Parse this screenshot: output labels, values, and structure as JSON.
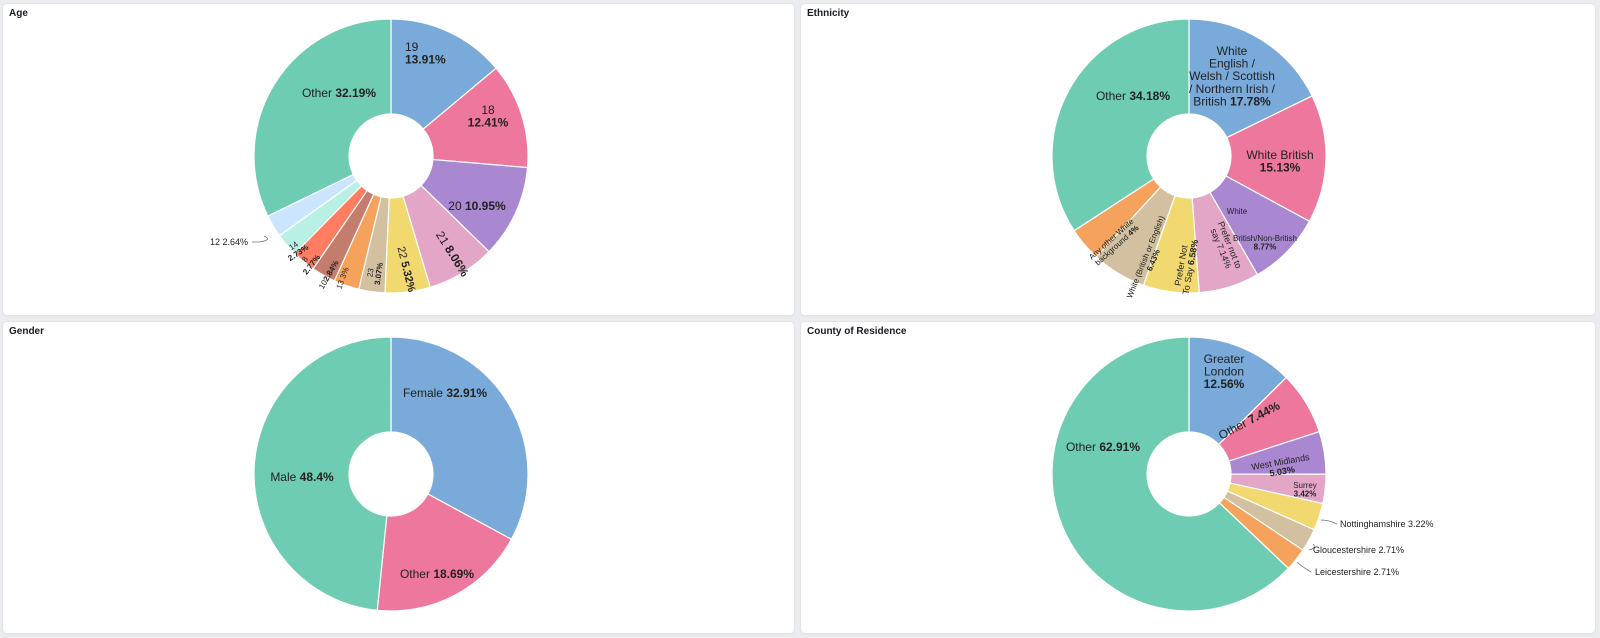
{
  "panels": [
    {
      "title": "Age"
    },
    {
      "title": "Ethnicity"
    },
    {
      "title": "Gender"
    },
    {
      "title": "County of Residence"
    }
  ],
  "colors": {
    "blue": "#79aad9",
    "pink": "#ee789d",
    "purple": "#a987d1",
    "lightpink": "#e4a6c7",
    "yellow": "#f1d86f",
    "tan": "#d2c0a0",
    "orange": "#f5a35c",
    "brown": "#c47c6c",
    "salmon": "#ff7e62",
    "mint": "#b8f1e3",
    "lightblue": "#cce5ff",
    "green": "#6dccb1"
  },
  "chart_data": [
    {
      "type": "pie",
      "title": "Age",
      "donut": true,
      "slices": [
        {
          "label": "19",
          "value": 13.91,
          "color": "#79aad9"
        },
        {
          "label": "18",
          "value": 12.41,
          "color": "#ee789d"
        },
        {
          "label": "20",
          "value": 10.95,
          "color": "#a987d1"
        },
        {
          "label": "21",
          "value": 8.06,
          "color": "#e4a6c7"
        },
        {
          "label": "22",
          "value": 5.32,
          "color": "#f1d86f"
        },
        {
          "label": "23",
          "value": 3.07,
          "color": "#d2c0a0"
        },
        {
          "label": "13",
          "value": 3,
          "color": "#f5a35c"
        },
        {
          "label": "10",
          "value": 2.84,
          "color": "#c47c6c"
        },
        {
          "label": "8",
          "value": 2.77,
          "color": "#ff7e62"
        },
        {
          "label": "14",
          "value": 2.73,
          "color": "#b8f1e3"
        },
        {
          "label": "12",
          "value": 2.64,
          "color": "#cce5ff"
        },
        {
          "label": "Other",
          "value": 32.19,
          "color": "#6dccb1"
        }
      ],
      "slice_labels": [
        "19",
        "13.91%",
        "18",
        "12.41%",
        "20",
        "10.95%",
        "21",
        "8.06%",
        "22",
        "5.32%",
        "23",
        "3.07%",
        "13",
        "3%",
        "10",
        "2.84%",
        "8",
        "2.77%",
        "14",
        "2.73%",
        "Other",
        "32.19%"
      ],
      "outside_labels": [
        "12",
        "2.64%"
      ]
    },
    {
      "type": "pie",
      "title": "Ethnicity",
      "donut": true,
      "slices": [
        {
          "label": "White English / Welsh / Scottish / Northern Irish / British",
          "value": 17.78,
          "color": "#79aad9"
        },
        {
          "label": "White British",
          "value": 15.13,
          "color": "#ee789d"
        },
        {
          "label": "White British/Non-British",
          "value": 8.77,
          "color": "#a987d1"
        },
        {
          "label": "Prefer not to say",
          "value": 7.14,
          "color": "#e4a6c7"
        },
        {
          "label": "Prefer Not To Say",
          "value": 6.58,
          "color": "#f1d86f"
        },
        {
          "label": "White (British or English)",
          "value": 6.43,
          "color": "#d2c0a0"
        },
        {
          "label": "Any other White background",
          "value": 4,
          "color": "#f5a35c"
        },
        {
          "label": "Other",
          "value": 34.18,
          "color": "#6dccb1"
        }
      ],
      "slice_labels": [
        "White",
        "English /",
        "Welsh / Scottish",
        "/ Northern Irish /",
        "British",
        "17.78%",
        "White British",
        "15.13%",
        "White",
        "British/Non-British",
        "8.77%",
        "Prefer not to",
        "say",
        "7.14%",
        "Prefer Not",
        "To Say",
        "6.58%",
        "White (British or English)",
        "6.43%",
        "Any other White",
        "background",
        "4%",
        "Other",
        "34.18%"
      ]
    },
    {
      "type": "pie",
      "title": "Gender",
      "donut": true,
      "slices": [
        {
          "label": "Female",
          "value": 32.91,
          "color": "#79aad9"
        },
        {
          "label": "Other",
          "value": 18.69,
          "color": "#ee789d"
        },
        {
          "label": "Male",
          "value": 48.4,
          "color": "#6dccb1"
        }
      ],
      "slice_labels": [
        "Female",
        "32.91%",
        "Other",
        "18.69%",
        "Male",
        "48.4%"
      ]
    },
    {
      "type": "pie",
      "title": "County of Residence",
      "donut": true,
      "slices": [
        {
          "label": "Greater London",
          "value": 12.56,
          "color": "#79aad9"
        },
        {
          "label": "Other",
          "value": 7.44,
          "color": "#ee789d"
        },
        {
          "label": "West Midlands",
          "value": 5.03,
          "color": "#a987d1"
        },
        {
          "label": "Surrey",
          "value": 3.42,
          "color": "#e4a6c7"
        },
        {
          "label": "Nottinghamshire",
          "value": 3.22,
          "color": "#f1d86f"
        },
        {
          "label": "Gloucestershire",
          "value": 2.71,
          "color": "#d2c0a0"
        },
        {
          "label": "Leicestershire",
          "value": 2.71,
          "color": "#f5a35c"
        },
        {
          "label": "Other",
          "value": 62.91,
          "color": "#6dccb1"
        }
      ],
      "slice_labels": [
        "Greater",
        "London",
        "12.56%",
        "Other",
        "7.44%",
        "West Midlands",
        "5.03%",
        "Surrey",
        "3.42%",
        "Other",
        "62.91%"
      ],
      "outside_labels": [
        "Nottinghamshire",
        "3.22%",
        "Gloucestershire",
        "2.71%",
        "Leicestershire",
        "2.71%"
      ]
    }
  ]
}
